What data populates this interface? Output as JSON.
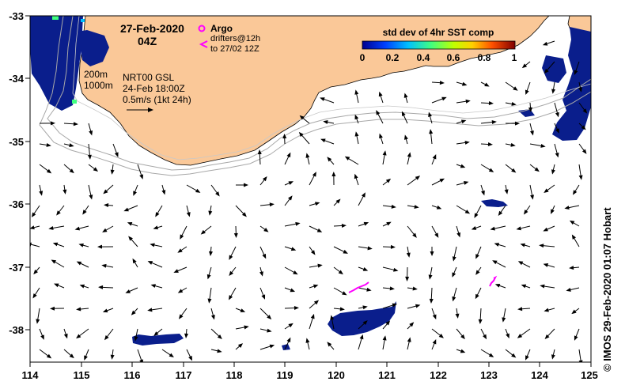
{
  "map": {
    "date": "27-Feb-2020",
    "time": "04Z",
    "credit": "©  IMOS 29-Feb-2020 01:07 Hobart",
    "x_ticks": [
      "114",
      "115",
      "116",
      "117",
      "118",
      "119",
      "120",
      "121",
      "122",
      "123",
      "124",
      "125"
    ],
    "y_ticks": [
      "-33",
      "-34",
      "-35",
      "-36",
      "-37",
      "-38"
    ],
    "colorbar": {
      "title": "std dev of 4hr SST comp",
      "ticks": [
        "0",
        "0.2",
        "0.4",
        "0.6",
        "0.8",
        "1"
      ]
    },
    "legend": {
      "argo_label": "Argo",
      "drifters_line1": "drifters@12h",
      "drifters_line2": "to 27/02 12Z",
      "isobath_200": "200m",
      "isobath_1000": "1000m",
      "product": "NRT00 GSL",
      "product_time": "24-Feb 18:00Z",
      "scale": "0.5m/s (1kt 24h)"
    },
    "colors": {
      "land": "#FAC898",
      "ocean": "#FFFFFF",
      "sst_low": "#0A1E8C",
      "drifter": "#FF00FF",
      "isobath": "#A8A8A8"
    }
  }
}
